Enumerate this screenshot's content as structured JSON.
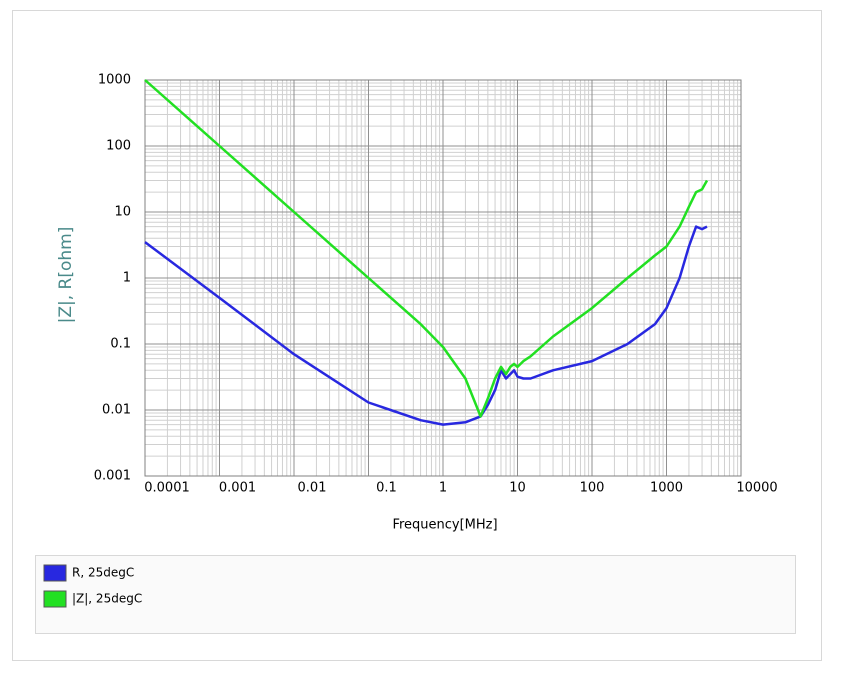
{
  "chart_data": {
    "type": "line",
    "x_label": "Frequency[MHz]",
    "y_label": "|Z|, R[ohm]",
    "x": [
      0.0001,
      0.001,
      0.01,
      0.1,
      0.5,
      1,
      2,
      3.2,
      4,
      5,
      6,
      7,
      8,
      9,
      10,
      12,
      15,
      30,
      100,
      300,
      700,
      1000,
      1500,
      2000,
      2500,
      3000,
      3500
    ],
    "series": [
      {
        "name": "R, 25degC",
        "color": "#2828e0",
        "values": [
          3.5,
          0.5,
          0.07,
          0.013,
          0.007,
          0.006,
          0.0065,
          0.008,
          0.012,
          0.02,
          0.04,
          0.03,
          0.035,
          0.04,
          0.032,
          0.03,
          0.03,
          0.04,
          0.055,
          0.1,
          0.2,
          0.35,
          1,
          3,
          6,
          5.5,
          6
        ]
      },
      {
        "name": "|Z|, 25degC",
        "color": "#22e022",
        "values": [
          1000,
          100,
          10,
          1,
          0.2,
          0.09,
          0.03,
          0.008,
          0.015,
          0.03,
          0.045,
          0.035,
          0.045,
          0.05,
          0.045,
          0.055,
          0.065,
          0.13,
          0.35,
          1,
          2.2,
          3,
          6,
          12,
          20,
          22,
          30
        ]
      }
    ],
    "xscale": "log",
    "yscale": "log",
    "xlim": [
      0.0001,
      10000
    ],
    "xticks": [
      0.0001,
      0.001,
      0.01,
      0.1,
      1,
      10,
      100,
      1000,
      10000
    ],
    "ylim": [
      0.001,
      1000
    ],
    "yticks": [
      0.001,
      0.01,
      0.1,
      1,
      10,
      100,
      1000
    ],
    "grid": true,
    "legend": "bottom"
  }
}
